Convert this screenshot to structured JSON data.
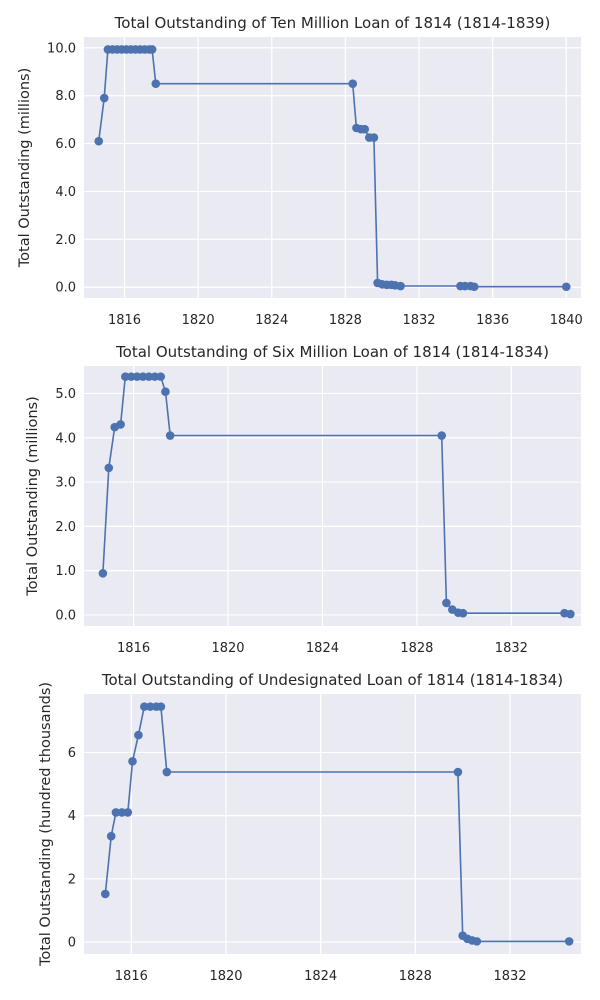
{
  "chart_data": [
    {
      "type": "line",
      "title": "Total Outstanding of Ten Million Loan of 1814 (1814-1839)",
      "xlabel": "",
      "ylabel": "Total Outstanding (millions)",
      "xlim": [
        1813.8,
        1840.8
      ],
      "ylim": [
        -0.45,
        10.45
      ],
      "xticks": [
        1816,
        1820,
        1824,
        1828,
        1832,
        1836,
        1840
      ],
      "yticks": [
        0,
        2,
        4,
        6,
        8,
        10
      ],
      "ytick_labels": [
        "0.0",
        "2.0",
        "4.0",
        "6.0",
        "8.0",
        "10.0"
      ],
      "grid": true,
      "series": [
        {
          "color": "#4c72b0",
          "x": [
            1814.6,
            1814.9,
            1815.1,
            1815.35,
            1815.6,
            1815.85,
            1816.1,
            1816.35,
            1816.6,
            1816.85,
            1817.1,
            1817.35,
            1817.5,
            1817.7,
            1828.4,
            1828.6,
            1828.85,
            1829.05,
            1829.3,
            1829.55,
            1829.75,
            1830.0,
            1830.25,
            1830.5,
            1830.7,
            1831.0,
            1834.25,
            1834.5,
            1834.8,
            1835.0,
            1840.0
          ],
          "y": [
            6.1,
            7.9,
            9.93,
            9.93,
            9.93,
            9.93,
            9.93,
            9.93,
            9.93,
            9.93,
            9.93,
            9.93,
            9.93,
            8.5,
            8.5,
            6.65,
            6.6,
            6.6,
            6.25,
            6.25,
            0.18,
            0.12,
            0.1,
            0.1,
            0.08,
            0.05,
            0.05,
            0.05,
            0.05,
            0.02,
            0.02
          ]
        }
      ]
    },
    {
      "type": "line",
      "title": "Total Outstanding of Six Million Loan of 1814 (1814-1834)",
      "xlabel": "",
      "ylabel": "Total Outstanding (millions)",
      "xlim": [
        1813.9,
        1834.95
      ],
      "ylim": [
        -0.25,
        5.62
      ],
      "xticks": [
        1816,
        1820,
        1824,
        1828,
        1832
      ],
      "yticks": [
        0,
        1,
        2,
        3,
        4,
        5
      ],
      "ytick_labels": [
        "0.0",
        "1.0",
        "2.0",
        "3.0",
        "4.0",
        "5.0"
      ],
      "grid": true,
      "series": [
        {
          "color": "#4c72b0",
          "x": [
            1814.7,
            1814.95,
            1815.2,
            1815.45,
            1815.65,
            1815.9,
            1816.15,
            1816.4,
            1816.65,
            1816.9,
            1817.15,
            1817.35,
            1817.55,
            1829.05,
            1829.25,
            1829.5,
            1829.75,
            1829.95,
            1834.25,
            1834.5
          ],
          "y": [
            0.94,
            3.32,
            4.24,
            4.3,
            5.38,
            5.38,
            5.38,
            5.38,
            5.38,
            5.38,
            5.38,
            5.04,
            4.05,
            4.05,
            0.27,
            0.12,
            0.05,
            0.04,
            0.04,
            0.02
          ]
        }
      ]
    },
    {
      "type": "line",
      "title": "Total Outstanding of Undesignated Loan of 1814 (1814-1834)",
      "xlabel": "",
      "ylabel": "Total Outstanding (hundred thousands)",
      "xlim": [
        1814.0,
        1835.0
      ],
      "ylim": [
        -0.38,
        7.85
      ],
      "xticks": [
        1816,
        1820,
        1824,
        1828,
        1832
      ],
      "yticks": [
        0,
        2,
        4,
        6
      ],
      "ytick_labels": [
        "0",
        "2",
        "4",
        "6"
      ],
      "grid": true,
      "series": [
        {
          "color": "#4c72b0",
          "x": [
            1814.9,
            1815.15,
            1815.35,
            1815.6,
            1815.85,
            1816.05,
            1816.3,
            1816.55,
            1816.8,
            1817.05,
            1817.25,
            1817.5,
            1829.8,
            1830.0,
            1830.2,
            1830.4,
            1830.6,
            1834.5
          ],
          "y": [
            1.52,
            3.35,
            4.1,
            4.1,
            4.1,
            5.72,
            6.55,
            7.45,
            7.45,
            7.45,
            7.45,
            5.38,
            5.38,
            0.2,
            0.1,
            0.05,
            0.02,
            0.02
          ]
        }
      ]
    }
  ]
}
